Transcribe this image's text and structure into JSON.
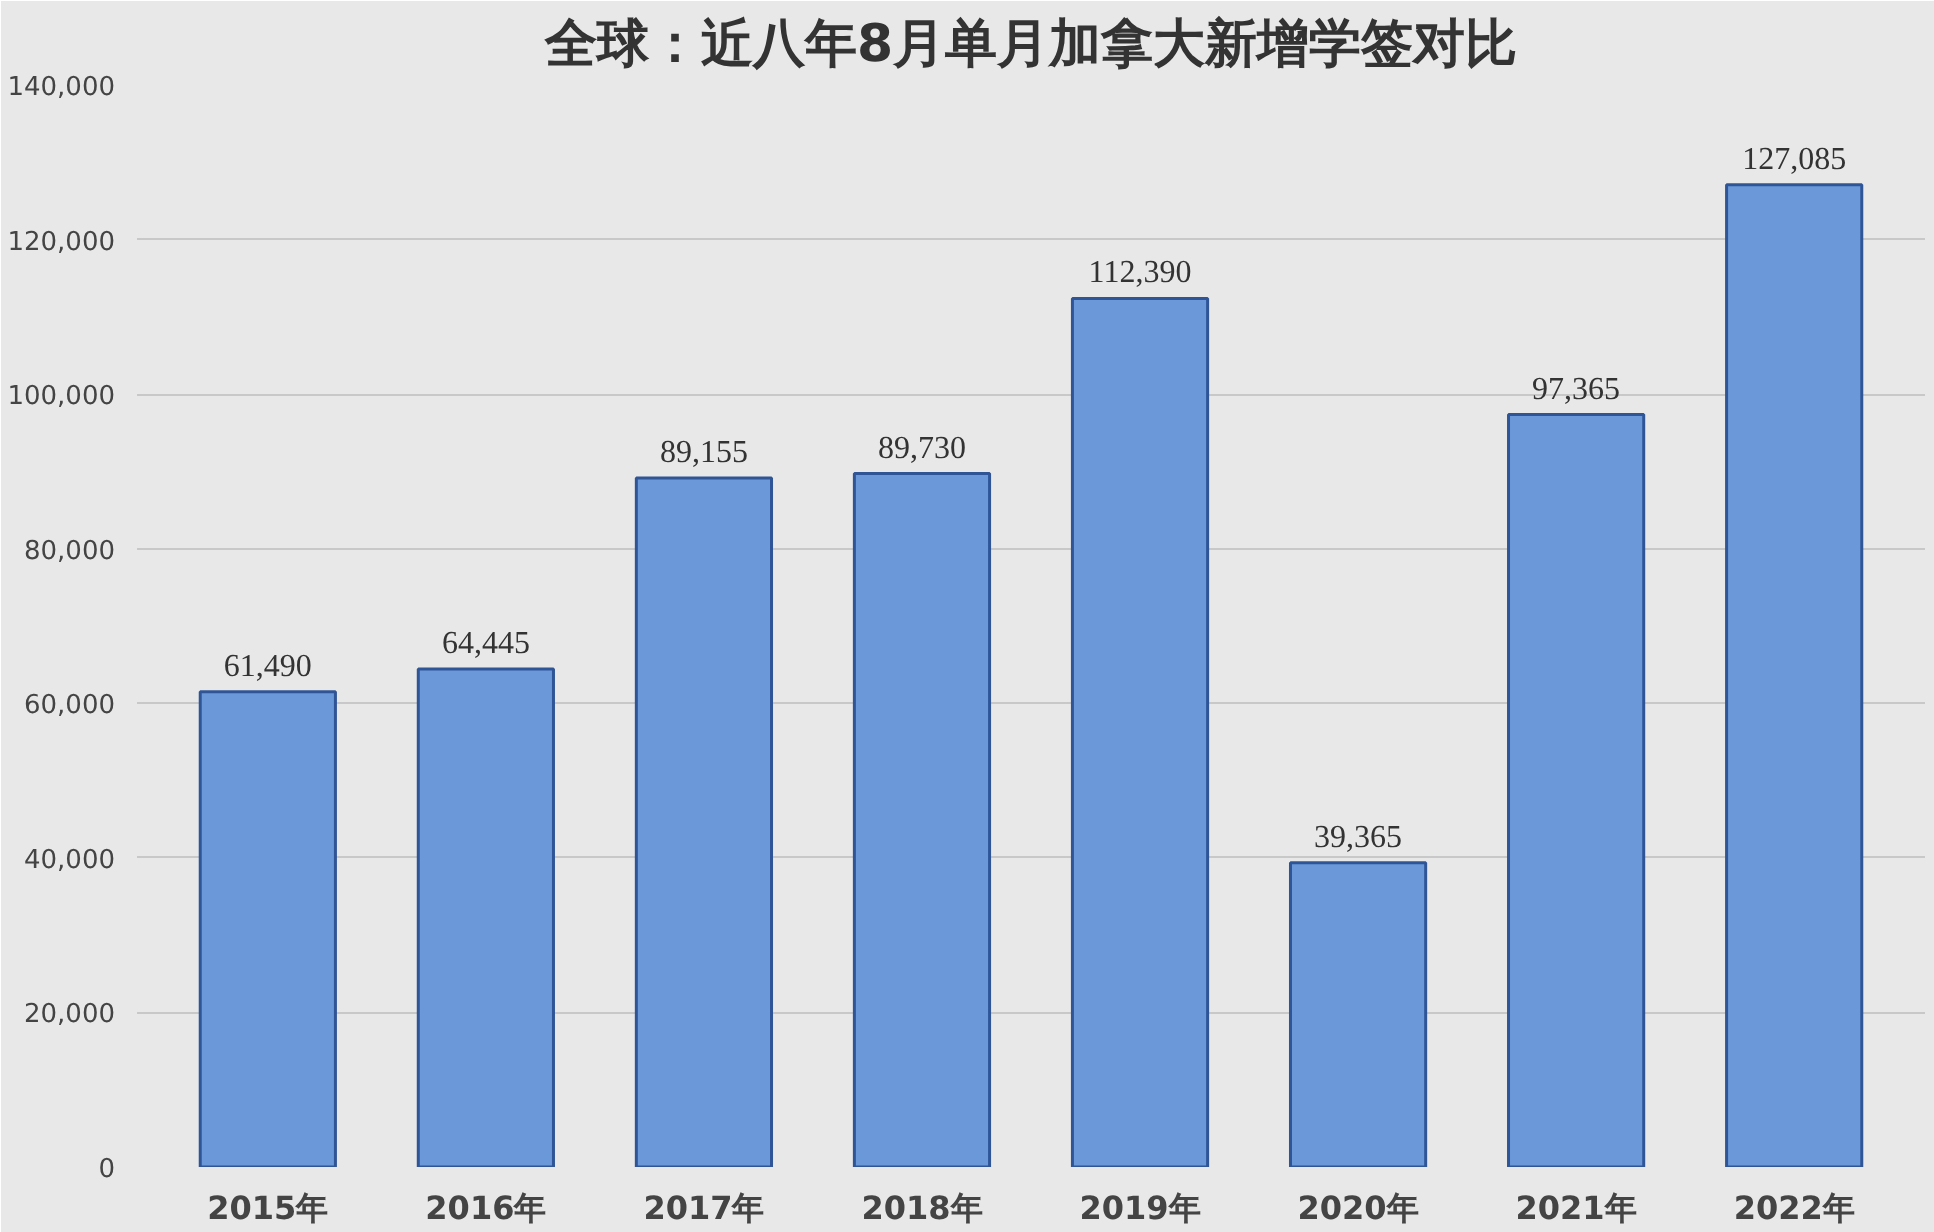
{
  "chart_data": {
    "type": "bar",
    "title": "全球：近八年8月单月加拿大新增学签对比",
    "categories": [
      "2015年",
      "2016年",
      "2017年",
      "2018年",
      "2019年",
      "2020年",
      "2021年",
      "2022年"
    ],
    "values": [
      61490,
      64445,
      89155,
      89730,
      112390,
      39365,
      97365,
      127085
    ],
    "value_labels": [
      "61,490",
      "64,445",
      "89,155",
      "89,730",
      "112,390",
      "39,365",
      "97,365",
      "127,085"
    ],
    "color": "#6a98d9",
    "ylim": [
      0,
      140000
    ],
    "yticks": [
      {
        "value": 0,
        "label": "0"
      },
      {
        "value": 20000,
        "label": "20,000"
      },
      {
        "value": 40000,
        "label": "40,000"
      },
      {
        "value": 60000,
        "label": "60,000"
      },
      {
        "value": 80000,
        "label": "80,000"
      },
      {
        "value": 100000,
        "label": "100,000"
      },
      {
        "value": 120000,
        "label": "120,000"
      },
      {
        "value": 140000,
        "label": "140,000"
      }
    ],
    "grid": "y"
  }
}
